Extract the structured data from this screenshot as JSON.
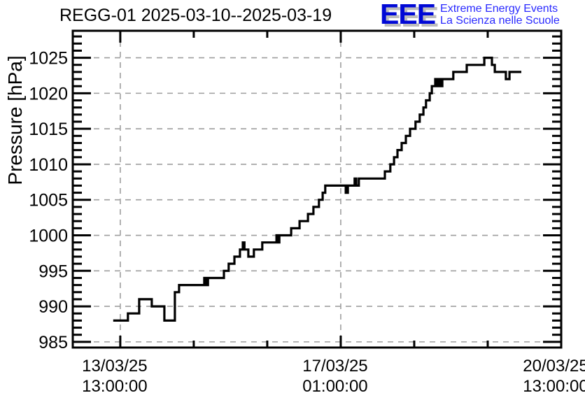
{
  "header": {
    "logo": {
      "acronym": "EEE",
      "line1": "Extreme Energy Events",
      "line2": "La Scienza nelle Scuole",
      "acronym_color": "#0008d6",
      "text_color": "#2a2aff",
      "shadow_color": "#bcbcbc"
    }
  },
  "chart_data": {
    "type": "line",
    "line_style": "step",
    "title": "REGG-01 2025-03-10--2025-03-19",
    "station": "REGG-01",
    "date_range_label": "2025-03-10--2025-03-19",
    "xlabel": "",
    "ylabel": "Pressure [hPa]",
    "grid": true,
    "legend": false,
    "line_color": "#000000",
    "grid_color": "#9e9e9e",
    "axis_color": "#000000",
    "y_axis": {
      "min": 984.2,
      "max": 1028.8,
      "major_tick_step": 5,
      "minor_tick_step": 1,
      "major_ticks": [
        985,
        990,
        995,
        1000,
        1005,
        1010,
        1015,
        1020,
        1025
      ]
    },
    "x_axis": {
      "unit": "hours since first labelled tick (2025-03-13 13:00:00)",
      "min": -18.1,
      "max": 168,
      "minor_tick_step_hours": 28,
      "major_ticks": [
        {
          "h": 0,
          "date": "13/03/25",
          "time": "13:00:00"
        },
        {
          "h": 84,
          "date": "17/03/25",
          "time": "01:00:00"
        },
        {
          "h": 168,
          "date": "20/03/25",
          "time": "13:00:00"
        }
      ]
    },
    "series": [
      {
        "name": "pressure",
        "points_unit": [
          "hours_since_2025-03-13T13:00:00",
          "hPa"
        ],
        "points": [
          [
            -2.7,
            988
          ],
          [
            2.9,
            989
          ],
          [
            7.2,
            991
          ],
          [
            12.0,
            990
          ],
          [
            16.8,
            988
          ],
          [
            20.8,
            992
          ],
          [
            22.4,
            993
          ],
          [
            32.0,
            994
          ],
          [
            32.6,
            993
          ],
          [
            33.4,
            994
          ],
          [
            39.5,
            995
          ],
          [
            41.3,
            996
          ],
          [
            43.5,
            997
          ],
          [
            45.6,
            998
          ],
          [
            46.7,
            999
          ],
          [
            47.3,
            998
          ],
          [
            48.8,
            997
          ],
          [
            50.9,
            998
          ],
          [
            54.1,
            999
          ],
          [
            59.5,
            1000
          ],
          [
            60.0,
            999
          ],
          [
            60.6,
            1000
          ],
          [
            65.1,
            1001
          ],
          [
            68.3,
            1002
          ],
          [
            71.5,
            1003
          ],
          [
            73.6,
            1004
          ],
          [
            75.7,
            1005
          ],
          [
            77.1,
            1006
          ],
          [
            78.1,
            1007
          ],
          [
            85.9,
            1006
          ],
          [
            86.7,
            1007
          ],
          [
            89.3,
            1008
          ],
          [
            89.9,
            1007
          ],
          [
            90.9,
            1008
          ],
          [
            100.8,
            1009
          ],
          [
            102.9,
            1010
          ],
          [
            104.3,
            1011
          ],
          [
            105.6,
            1012
          ],
          [
            107.2,
            1013
          ],
          [
            108.8,
            1014
          ],
          [
            110.4,
            1015
          ],
          [
            112.5,
            1016
          ],
          [
            114.1,
            1017
          ],
          [
            115.5,
            1018
          ],
          [
            116.5,
            1019
          ],
          [
            117.9,
            1020
          ],
          [
            118.7,
            1021
          ],
          [
            120.0,
            1022
          ],
          [
            120.5,
            1021
          ],
          [
            121.3,
            1022
          ],
          [
            121.9,
            1021
          ],
          [
            122.7,
            1022
          ],
          [
            126.9,
            1023
          ],
          [
            132.0,
            1024
          ],
          [
            138.7,
            1025
          ],
          [
            141.6,
            1024
          ],
          [
            142.7,
            1023
          ],
          [
            146.9,
            1022
          ],
          [
            148.3,
            1023
          ],
          [
            152.8,
            1023
          ]
        ]
      }
    ]
  }
}
